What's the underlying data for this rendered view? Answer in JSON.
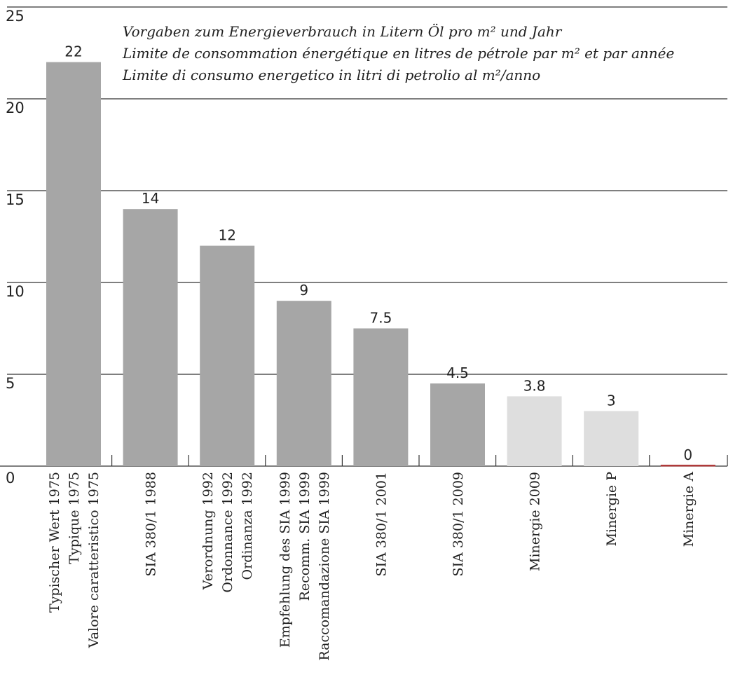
{
  "chart_data": {
    "type": "bar",
    "title": "",
    "annotation_lines": [
      "Vorgaben zum Energieverbrauch in Litern Öl pro m² und Jahr",
      "Limite de consommation énergétique en litres de pétrole par m² et par année",
      "Limite di consumo energetico in litri di petrolio al m²/anno"
    ],
    "xlabel": "",
    "ylabel": "",
    "ylim": [
      0,
      25
    ],
    "yticks": [
      0,
      5,
      10,
      15,
      20,
      25
    ],
    "grid": true,
    "categories": [
      [
        "Typischer Wert 1975",
        "Typique 1975",
        "Valore caratteristico 1975"
      ],
      [
        "SIA 380/1 1988"
      ],
      [
        "Verordnung 1992",
        "Ordonnance 1992",
        "Ordinanza 1992"
      ],
      [
        "Empfehlung des SIA 1999",
        "Recomm. SIA 1999",
        "Raccomandazione SIA 1999"
      ],
      [
        "SIA 380/1 2001"
      ],
      [
        "SIA 380/1 2009"
      ],
      [
        "Minergie 2009"
      ],
      [
        "Minergie P"
      ],
      [
        "Minergie  A"
      ]
    ],
    "values": [
      22,
      14,
      12,
      9,
      7.5,
      4.5,
      3.8,
      3,
      0
    ],
    "value_labels": [
      "22",
      "14",
      "12",
      "9",
      "7.5",
      "4.5",
      "3.8",
      "3",
      "0"
    ],
    "colors": [
      "#a6a6a6",
      "#a6a6a6",
      "#a6a6a6",
      "#a6a6a6",
      "#a6a6a6",
      "#a6a6a6",
      "#dedede",
      "#dedede",
      "#b03a3a"
    ]
  }
}
